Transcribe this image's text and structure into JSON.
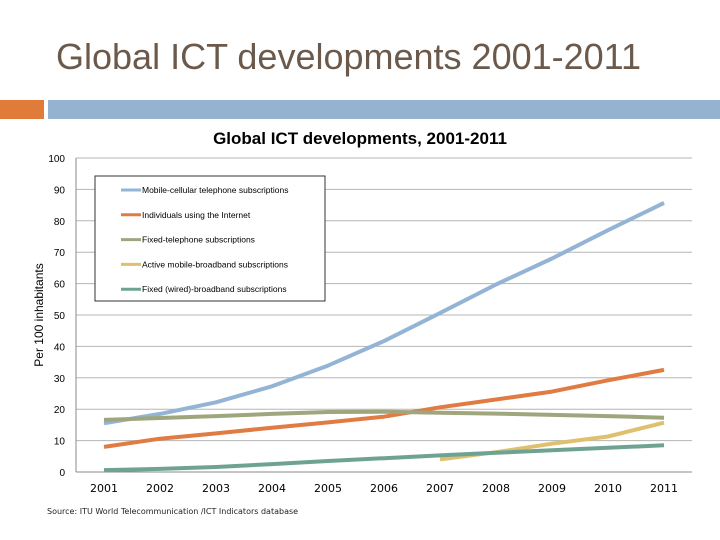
{
  "slide": {
    "title": "Global ICT developments 2001-2011",
    "source": "Source:  ITU World Telecommunication /ICT Indicators database",
    "accent_colors": {
      "orange": "#e07b39",
      "blue": "#94b3d1"
    }
  },
  "chart_data": {
    "type": "line",
    "title": "Global ICT developments, 2001-2011",
    "xlabel": "",
    "ylabel": "Per 100 inhabitants",
    "x": [
      2001,
      2002,
      2003,
      2004,
      2005,
      2006,
      2007,
      2008,
      2009,
      2010,
      2011
    ],
    "ylim": [
      0,
      100
    ],
    "yticks": [
      0,
      10,
      20,
      30,
      40,
      50,
      60,
      70,
      80,
      90,
      100
    ],
    "grid": true,
    "legend_position": "top-left, inside",
    "series": [
      {
        "name": "Mobile-cellular telephone subscriptions",
        "color": "#93b4d4",
        "values": [
          15.5,
          18.5,
          22.2,
          27.3,
          33.9,
          41.7,
          50.6,
          59.7,
          68.0,
          77.0,
          85.7
        ]
      },
      {
        "name": "Individuals using the Internet",
        "color": "#e07b42",
        "values": [
          8.0,
          10.6,
          12.3,
          14.1,
          15.8,
          17.6,
          20.6,
          23.1,
          25.6,
          29.2,
          32.5
        ]
      },
      {
        "name": "Fixed-telephone subscriptions",
        "color": "#9fa67e",
        "values": [
          16.6,
          17.2,
          17.8,
          18.5,
          19.1,
          19.2,
          18.9,
          18.6,
          18.2,
          17.8,
          17.3
        ]
      },
      {
        "name": "Active mobile-broadband subscriptions",
        "color": "#dfc06e",
        "values": [
          null,
          null,
          null,
          null,
          null,
          null,
          4.0,
          6.3,
          9.0,
          11.3,
          15.7
        ]
      },
      {
        "name": "Fixed (wired)-broadband subscriptions",
        "color": "#6ea393",
        "values": [
          0.6,
          1.0,
          1.6,
          2.5,
          3.5,
          4.4,
          5.3,
          6.1,
          6.9,
          7.7,
          8.5
        ]
      }
    ]
  }
}
